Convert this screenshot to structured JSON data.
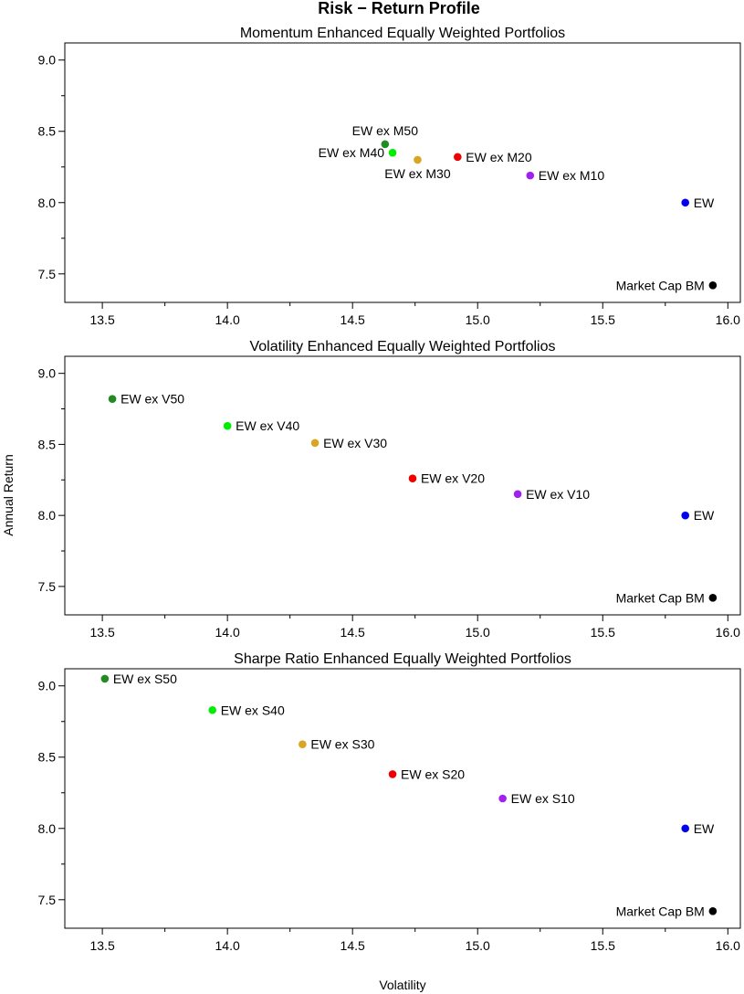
{
  "figure": {
    "title": "Risk − Return Profile",
    "xlabel": "Volatility",
    "ylabel": "Annual Return"
  },
  "chart_data": [
    {
      "type": "scatter",
      "title": "Momentum Enhanced Equally Weighted Portfolios",
      "xlim": [
        13.35,
        16.05
      ],
      "ylim": [
        7.3,
        9.12
      ],
      "xticks": [
        "13.5",
        "14.0",
        "14.5",
        "15.0",
        "15.5",
        "16.0"
      ],
      "yticks": [
        "7.5",
        "8.0",
        "8.5",
        "9.0"
      ],
      "points": [
        {
          "label": "EW ex M50",
          "x": 14.63,
          "y": 8.41,
          "color": "#228b22",
          "label_pos": "above"
        },
        {
          "label": "EW ex M40",
          "x": 14.66,
          "y": 8.35,
          "color": "#00ee00",
          "label_pos": "left"
        },
        {
          "label": "EW ex M30",
          "x": 14.76,
          "y": 8.3,
          "color": "#daa520",
          "label_pos": "below"
        },
        {
          "label": "EW ex M20",
          "x": 14.92,
          "y": 8.32,
          "color": "#ee0000",
          "label_pos": "right"
        },
        {
          "label": "EW ex M10",
          "x": 15.21,
          "y": 8.19,
          "color": "#a020f0",
          "label_pos": "right"
        },
        {
          "label": "EW",
          "x": 15.83,
          "y": 8.0,
          "color": "#0000ee",
          "label_pos": "right"
        },
        {
          "label": "Market Cap BM",
          "x": 15.94,
          "y": 7.42,
          "color": "#000000",
          "label_pos": "left"
        }
      ]
    },
    {
      "type": "scatter",
      "title": "Volatility Enhanced Equally Weighted Portfolios",
      "xlim": [
        13.35,
        16.05
      ],
      "ylim": [
        7.3,
        9.12
      ],
      "xticks": [
        "13.5",
        "14.0",
        "14.5",
        "15.0",
        "15.5",
        "16.0"
      ],
      "yticks": [
        "7.5",
        "8.0",
        "8.5",
        "9.0"
      ],
      "points": [
        {
          "label": "EW ex V50",
          "x": 13.54,
          "y": 8.82,
          "color": "#228b22",
          "label_pos": "right"
        },
        {
          "label": "EW ex V40",
          "x": 14.0,
          "y": 8.63,
          "color": "#00ee00",
          "label_pos": "right"
        },
        {
          "label": "EW ex V30",
          "x": 14.35,
          "y": 8.51,
          "color": "#daa520",
          "label_pos": "right"
        },
        {
          "label": "EW ex V20",
          "x": 14.74,
          "y": 8.26,
          "color": "#ee0000",
          "label_pos": "right"
        },
        {
          "label": "EW ex V10",
          "x": 15.16,
          "y": 8.15,
          "color": "#a020f0",
          "label_pos": "right"
        },
        {
          "label": "EW",
          "x": 15.83,
          "y": 8.0,
          "color": "#0000ee",
          "label_pos": "right"
        },
        {
          "label": "Market Cap BM",
          "x": 15.94,
          "y": 7.42,
          "color": "#000000",
          "label_pos": "left"
        }
      ]
    },
    {
      "type": "scatter",
      "title": "Sharpe Ratio Enhanced Equally Weighted Portfolios",
      "xlim": [
        13.35,
        16.05
      ],
      "ylim": [
        7.3,
        9.12
      ],
      "xticks": [
        "13.5",
        "14.0",
        "14.5",
        "15.0",
        "15.5",
        "16.0"
      ],
      "yticks": [
        "7.5",
        "8.0",
        "8.5",
        "9.0"
      ],
      "points": [
        {
          "label": "EW ex S50",
          "x": 13.51,
          "y": 9.05,
          "color": "#228b22",
          "label_pos": "right"
        },
        {
          "label": "EW ex S40",
          "x": 13.94,
          "y": 8.83,
          "color": "#00ee00",
          "label_pos": "right"
        },
        {
          "label": "EW ex S30",
          "x": 14.3,
          "y": 8.59,
          "color": "#daa520",
          "label_pos": "right"
        },
        {
          "label": "EW ex S20",
          "x": 14.66,
          "y": 8.38,
          "color": "#ee0000",
          "label_pos": "right"
        },
        {
          "label": "EW ex S10",
          "x": 15.1,
          "y": 8.21,
          "color": "#a020f0",
          "label_pos": "right"
        },
        {
          "label": "EW",
          "x": 15.83,
          "y": 8.0,
          "color": "#0000ee",
          "label_pos": "right"
        },
        {
          "label": "Market Cap BM",
          "x": 15.94,
          "y": 7.42,
          "color": "#000000",
          "label_pos": "left"
        }
      ]
    }
  ]
}
